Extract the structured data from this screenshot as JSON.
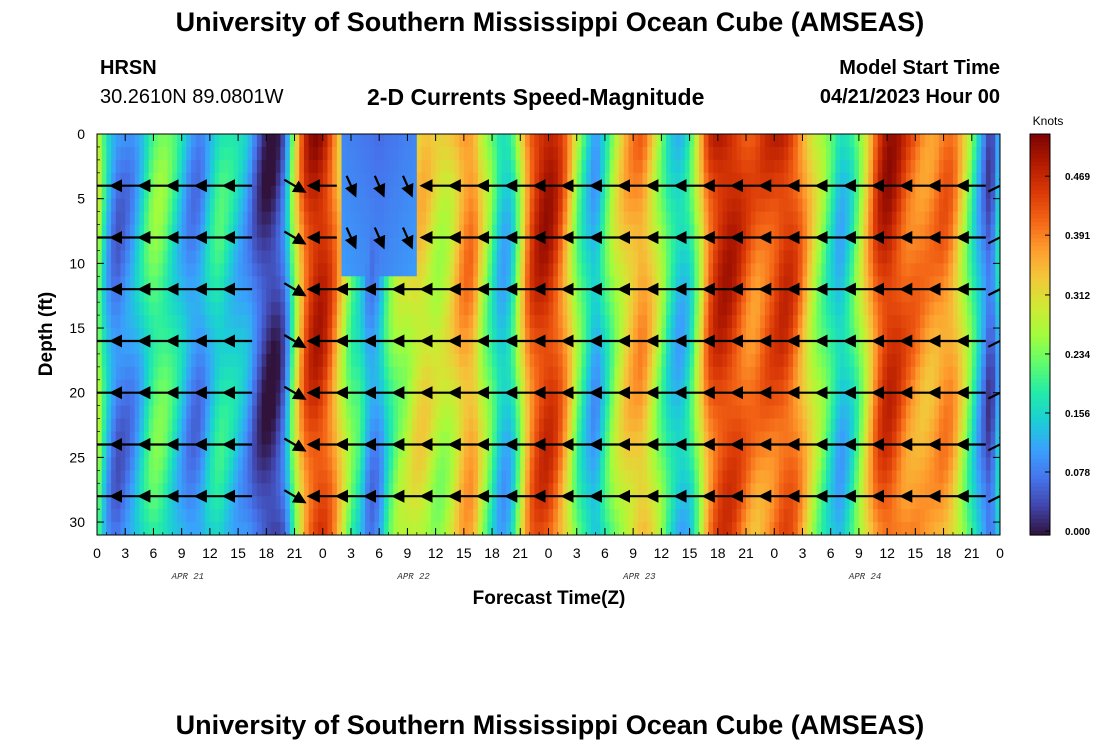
{
  "title": "University of Southern Mississippi Ocean Cube (AMSEAS)",
  "title_repeat": "University of Southern Mississippi Ocean Cube (AMSEAS)",
  "station": "HRSN",
  "coordinates": "30.2610N  89.0801W",
  "subtitle": "2-D Currents Speed-Magnitude",
  "model_start_label": "Model Start Time",
  "model_start_value": "04/21/2023 Hour 00",
  "colors": {
    "colormap": [
      "#30123b",
      "#4145ab",
      "#4675ed",
      "#39a2fc",
      "#1bcfd4",
      "#24eca6",
      "#61fc6c",
      "#a4fc3b",
      "#d1e834",
      "#f3c63a",
      "#fe9b2d",
      "#f36315",
      "#d93806",
      "#b11901",
      "#7a0402"
    ],
    "arrow": "#000000"
  },
  "chart_data": {
    "type": "heatmap",
    "title": "2-D Currents Speed-Magnitude",
    "xlabel": "Forecast Time(Z)",
    "ylabel": "Depth (ft)",
    "x_unit": "hours since 04/21/2023 00Z",
    "xlim": [
      0,
      96
    ],
    "ylim": [
      0,
      31
    ],
    "y_inverted": true,
    "x_ticks": [
      0,
      3,
      6,
      9,
      12,
      15,
      18,
      21,
      24,
      27,
      30,
      33,
      36,
      39,
      42,
      45,
      48,
      51,
      54,
      57,
      60,
      63,
      66,
      69,
      72,
      75,
      78,
      81,
      84,
      87,
      90,
      93,
      96
    ],
    "x_tick_labels": [
      "0",
      "3",
      "6",
      "9",
      "12",
      "15",
      "18",
      "21",
      "0",
      "3",
      "6",
      "9",
      "12",
      "15",
      "18",
      "21",
      "0",
      "3",
      "6",
      "9",
      "12",
      "15",
      "18",
      "21",
      "0",
      "3",
      "6",
      "9",
      "12",
      "15",
      "18",
      "21",
      "0"
    ],
    "date_labels": [
      {
        "label": "APR 21",
        "center_hour": 12
      },
      {
        "label": "APR 22",
        "center_hour": 36
      },
      {
        "label": "APR 23",
        "center_hour": 60
      },
      {
        "label": "APR 24",
        "center_hour": 84
      }
    ],
    "y_ticks": [
      0,
      5,
      10,
      15,
      20,
      25,
      30
    ],
    "colorbar": {
      "unit": "Knots",
      "ticks": [
        0.0,
        0.078,
        0.156,
        0.234,
        0.312,
        0.391,
        0.469
      ],
      "tick_labels": [
        "0.000",
        "0.078",
        "0.156",
        "0.234",
        "0.312",
        "0.391",
        "0.469"
      ],
      "range": [
        0,
        0.53
      ]
    },
    "speed_by_hour": {
      "hours": [
        0,
        1,
        2,
        3,
        4,
        5,
        6,
        7,
        8,
        9,
        10,
        11,
        12,
        13,
        14,
        15,
        16,
        17,
        18,
        19,
        20,
        21,
        22,
        23,
        24,
        25,
        26,
        27,
        28,
        29,
        30,
        31,
        32,
        33,
        34,
        35,
        36,
        37,
        38,
        39,
        40,
        41,
        42,
        43,
        44,
        45,
        46,
        47,
        48,
        49,
        50,
        51,
        52,
        53,
        54,
        55,
        56,
        57,
        58,
        59,
        60,
        61,
        62,
        63,
        64,
        65,
        66,
        67,
        68,
        69,
        70,
        71,
        72,
        73,
        74,
        75,
        76,
        77,
        78,
        79,
        80,
        81,
        82,
        83,
        84,
        85,
        86,
        87,
        88,
        89,
        90,
        91,
        92,
        93,
        94,
        95,
        96
      ],
      "speed_knots": [
        0.3,
        0.15,
        0.08,
        0.09,
        0.12,
        0.18,
        0.24,
        0.24,
        0.2,
        0.15,
        0.1,
        0.1,
        0.16,
        0.2,
        0.18,
        0.15,
        0.12,
        0.06,
        0.02,
        0.02,
        0.08,
        0.28,
        0.44,
        0.5,
        0.5,
        0.44,
        0.34,
        0.24,
        0.2,
        0.1,
        0.12,
        0.22,
        0.28,
        0.3,
        0.34,
        0.34,
        0.3,
        0.3,
        0.34,
        0.4,
        0.4,
        0.3,
        0.22,
        0.14,
        0.16,
        0.3,
        0.44,
        0.49,
        0.5,
        0.46,
        0.38,
        0.26,
        0.18,
        0.12,
        0.2,
        0.28,
        0.34,
        0.38,
        0.4,
        0.34,
        0.26,
        0.18,
        0.14,
        0.18,
        0.3,
        0.44,
        0.49,
        0.5,
        0.48,
        0.44,
        0.42,
        0.44,
        0.46,
        0.48,
        0.46,
        0.4,
        0.32,
        0.26,
        0.2,
        0.14,
        0.18,
        0.26,
        0.36,
        0.46,
        0.5,
        0.48,
        0.44,
        0.42,
        0.4,
        0.4,
        0.42,
        0.4,
        0.32,
        0.22,
        0.12,
        0.04,
        0.18
      ]
    },
    "weak_region_note": "lower speeds (~0.06-0.15 kn) between hours 27-33 at depths 0-10 ft",
    "vectors": {
      "depth_rows_ft": [
        4,
        8,
        12,
        16,
        20,
        24,
        28
      ],
      "hours": [
        0,
        3,
        6,
        9,
        12,
        15,
        21,
        24,
        27,
        30,
        33,
        36,
        39,
        42,
        45,
        48,
        51,
        54,
        57,
        60,
        63,
        66,
        69,
        72,
        75,
        78,
        81,
        84,
        87,
        90,
        93,
        96
      ],
      "note": "predominantly westward flow; eastward/northward vectors near hours 21 and 96"
    }
  }
}
